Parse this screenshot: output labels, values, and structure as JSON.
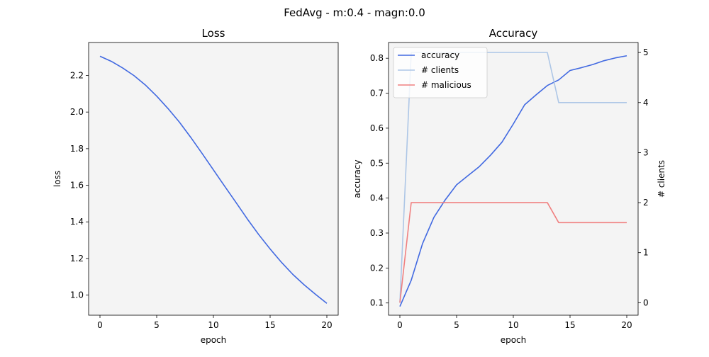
{
  "suptitle": "FedAvg - m:0.4 - magn:0.0",
  "chart_data": [
    {
      "type": "line",
      "title": "Loss",
      "xlabel": "epoch",
      "ylabel": "loss",
      "xlim": [
        -1,
        21
      ],
      "ylim": [
        0.89,
        2.38
      ],
      "xticks": [
        0,
        5,
        10,
        15,
        20
      ],
      "yticks": [
        1.0,
        1.2,
        1.4,
        1.6,
        1.8,
        2.0,
        2.2
      ],
      "ytick_labels": [
        "1.0",
        "1.2",
        "1.4",
        "1.6",
        "1.8",
        "2.0",
        "2.2"
      ],
      "grid": false,
      "background": "#f4f4f4",
      "series": [
        {
          "color": "#4169e1",
          "x": [
            0,
            1,
            2,
            3,
            4,
            5,
            6,
            7,
            8,
            9,
            10,
            11,
            12,
            13,
            14,
            15,
            16,
            17,
            18,
            19,
            20
          ],
          "y": [
            2.305,
            2.277,
            2.241,
            2.199,
            2.148,
            2.087,
            2.019,
            1.945,
            1.862,
            1.774,
            1.684,
            1.594,
            1.505,
            1.415,
            1.33,
            1.252,
            1.179,
            1.113,
            1.056,
            1.004,
            0.955
          ]
        }
      ]
    },
    {
      "type": "line",
      "title": "Accuracy",
      "xlabel": "epoch",
      "ylabel": "accuracy",
      "ylabel_right": "# clients",
      "xlim": [
        -1,
        21
      ],
      "ylim": [
        0.065,
        0.845
      ],
      "ylim_right": [
        -0.25,
        5.2
      ],
      "xticks": [
        0,
        5,
        10,
        15,
        20
      ],
      "yticks": [
        0.1,
        0.2,
        0.3,
        0.4,
        0.5,
        0.6,
        0.7,
        0.8
      ],
      "ytick_labels": [
        "0.1",
        "0.2",
        "0.3",
        "0.4",
        "0.5",
        "0.6",
        "0.7",
        "0.8"
      ],
      "yticks_right": [
        0,
        1,
        2,
        3,
        4,
        5
      ],
      "ytick_labels_right": [
        "0",
        "1",
        "2",
        "3",
        "4",
        "5"
      ],
      "grid": false,
      "legend_position": "top-left",
      "background": "#f4f4f4",
      "series": [
        {
          "name": "accuracy",
          "axis": "left",
          "color": "#4169e1",
          "x": [
            0,
            1,
            2,
            3,
            4,
            5,
            6,
            7,
            8,
            9,
            10,
            11,
            12,
            13,
            14,
            15,
            16,
            17,
            18,
            19,
            20
          ],
          "y": [
            0.09,
            0.165,
            0.27,
            0.345,
            0.395,
            0.438,
            0.464,
            0.49,
            0.523,
            0.56,
            0.612,
            0.667,
            0.695,
            0.722,
            0.738,
            0.765,
            0.773,
            0.782,
            0.793,
            0.801,
            0.807
          ]
        },
        {
          "name": "# clients",
          "axis": "right",
          "color": "#adc6e6",
          "x": [
            0,
            1,
            2,
            3,
            4,
            5,
            6,
            7,
            8,
            9,
            10,
            11,
            12,
            13,
            14,
            15,
            16,
            17,
            18,
            19,
            20
          ],
          "y": [
            0,
            5,
            5,
            5,
            5,
            5,
            5,
            5,
            5,
            5,
            5,
            5,
            5,
            5,
            4,
            4,
            4,
            4,
            4,
            4,
            4
          ]
        },
        {
          "name": "# malicious",
          "axis": "right",
          "color": "#f08080",
          "x": [
            0,
            1,
            2,
            3,
            4,
            5,
            6,
            7,
            8,
            9,
            10,
            11,
            12,
            13,
            14,
            15,
            16,
            17,
            18,
            19,
            20
          ],
          "y": [
            0,
            2,
            2,
            2,
            2,
            2,
            2,
            2,
            2,
            2,
            2,
            2,
            2,
            2,
            1.6,
            1.6,
            1.6,
            1.6,
            1.6,
            1.6,
            1.6
          ]
        }
      ]
    }
  ]
}
